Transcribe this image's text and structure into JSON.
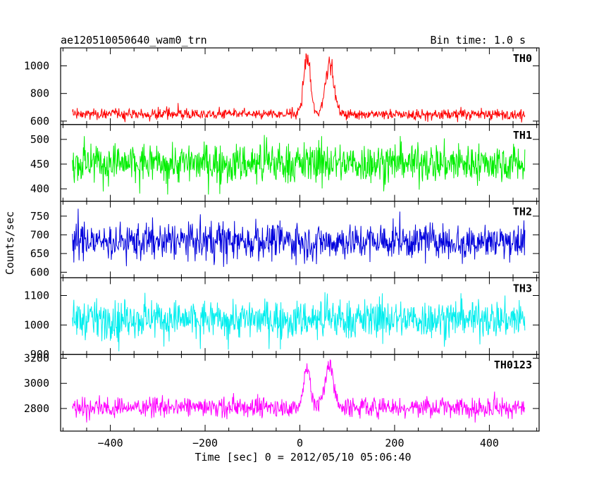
{
  "chart_data": {
    "type": "line",
    "title": "ae120510050640_wam0_trn",
    "bin_time_label": "Bin time: 1.0 s",
    "xlabel": "Time [sec] 0 = 2012/05/10 05:06:40",
    "ylabel": "Counts/sec",
    "xlim": [
      -505,
      505
    ],
    "xticks": [
      -400,
      -200,
      0,
      200,
      400
    ],
    "grid": false,
    "panels": [
      {
        "name": "TH0",
        "color": "#ff0000",
        "ylim": [
          575,
          1130
        ],
        "yticks": [
          600,
          800,
          1000
        ],
        "baseline": 650,
        "noise": 18,
        "spike": 50,
        "peaks": [
          {
            "t": 15,
            "amp": 420,
            "w": 7
          },
          {
            "t": 63,
            "amp": 380,
            "w": 9
          }
        ]
      },
      {
        "name": "TH1",
        "color": "#00ee00",
        "ylim": [
          375,
          530
        ],
        "yticks": [
          400,
          450,
          500
        ],
        "baseline": 452,
        "noise": 20,
        "spike": 45,
        "peaks": []
      },
      {
        "name": "TH2",
        "color": "#0000dd",
        "ylim": [
          585,
          790
        ],
        "yticks": [
          600,
          650,
          700,
          750
        ],
        "baseline": 683,
        "noise": 24,
        "spike": 55,
        "peaks": []
      },
      {
        "name": "TH3",
        "color": "#00eeee",
        "ylim": [
          900,
          1160
        ],
        "yticks": [
          900,
          1000,
          1100
        ],
        "baseline": 1020,
        "noise": 32,
        "spike": 75,
        "peaks": []
      },
      {
        "name": "TH0123",
        "color": "#ff00ff",
        "ylim": [
          2620,
          3230
        ],
        "yticks": [
          2800,
          3000,
          3200
        ],
        "baseline": 2810,
        "noise": 38,
        "spike": 80,
        "peaks": [
          {
            "t": 15,
            "amp": 330,
            "w": 7
          },
          {
            "t": 62,
            "amp": 320,
            "w": 9
          }
        ]
      }
    ],
    "series_x_range": [
      -480,
      475
    ]
  }
}
